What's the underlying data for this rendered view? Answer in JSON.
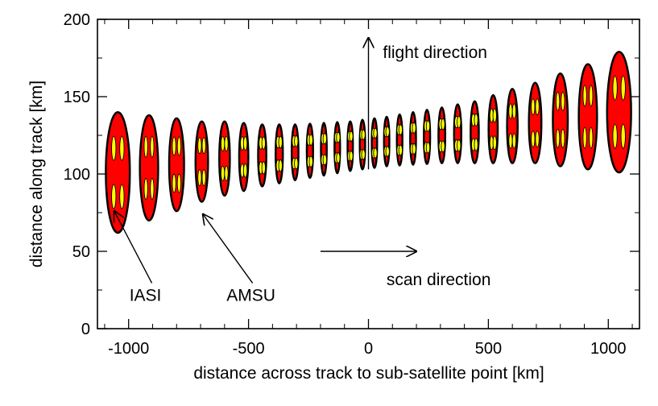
{
  "chart_data": {
    "type": "scatter",
    "title": "",
    "xlabel": "distance across track to sub-satellite point [km]",
    "ylabel": "distance along track [km]",
    "xlim": [
      -1130,
      1130
    ],
    "ylim": [
      0,
      200
    ],
    "xticks": [
      -1000,
      -500,
      0,
      500,
      1000
    ],
    "yticks": [
      0,
      50,
      100,
      150,
      200
    ],
    "xtick_labels": [
      "-1000",
      "-500",
      "0",
      "500",
      "1000"
    ],
    "ytick_labels": [
      "0",
      "50",
      "100",
      "150",
      "200"
    ],
    "series": [
      {
        "name": "AMSU footprints",
        "x": [
          -1045,
          -915,
          -800,
          -695,
          -600,
          -520,
          -443,
          -372,
          -306,
          -244,
          -186,
          -130,
          -76,
          -25,
          25,
          76,
          130,
          186,
          244,
          306,
          372,
          443,
          520,
          600,
          695,
          800,
          915,
          1045
        ],
        "y": [
          101,
          104,
          106,
          108,
          110,
          111,
          112,
          113,
          114,
          115,
          116,
          117,
          118,
          119,
          120,
          121,
          122,
          123,
          124,
          125,
          126,
          127,
          129,
          131,
          133,
          135,
          137,
          140
        ],
        "half_width": [
          50,
          38,
          31,
          26,
          22,
          19,
          17,
          15,
          14,
          13,
          12,
          11.5,
          11,
          11,
          11,
          11,
          11.5,
          12,
          13,
          14,
          15,
          17,
          19,
          22,
          26,
          31,
          38,
          50
        ],
        "half_height": [
          39,
          34,
          30,
          26,
          24,
          22,
          20,
          19,
          18,
          17.5,
          17,
          16.5,
          16,
          16,
          16,
          16,
          16.5,
          17,
          17.5,
          18,
          19,
          20,
          22,
          24,
          26,
          30,
          34,
          39
        ],
        "color": "#ff0000"
      },
      {
        "name": "IASI pixels (2x2 per AMSU footprint)",
        "color": "#ffff00"
      }
    ],
    "annotations": [
      {
        "text": "IASI",
        "x": -930,
        "y": 18,
        "arrow_to": [
          -1060,
          76
        ]
      },
      {
        "text": "AMSU",
        "x": -490,
        "y": 18,
        "arrow_to": [
          -690,
          74
        ]
      },
      {
        "text": "flight direction",
        "x": 60,
        "y": 175,
        "arrow_from": [
          0,
          103
        ],
        "arrow_to": [
          0,
          188
        ]
      },
      {
        "text": "scan direction",
        "x": 75,
        "y": 28,
        "arrow_from": [
          -200,
          50
        ],
        "arrow_to": [
          200,
          50
        ]
      }
    ]
  }
}
